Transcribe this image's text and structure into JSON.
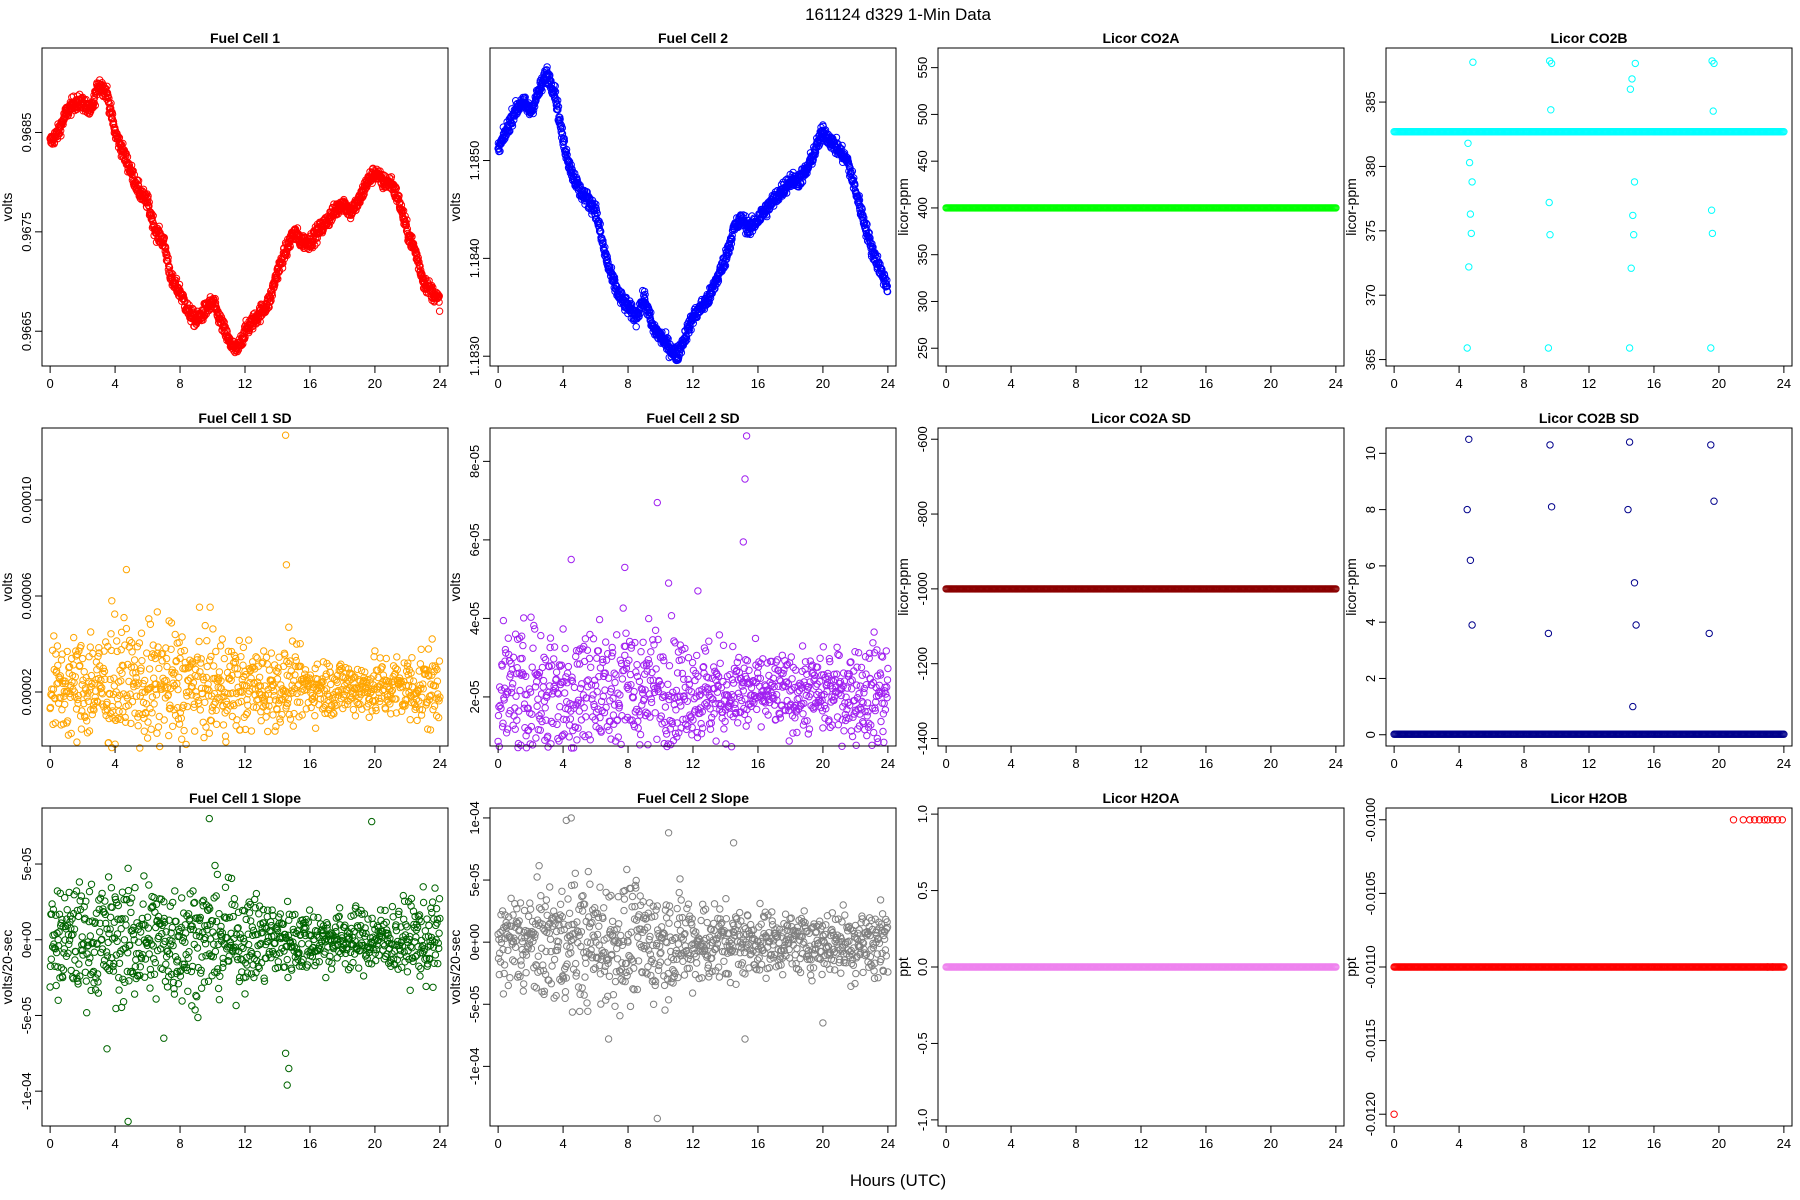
{
  "figure": {
    "title": "161124   d329   1-Min Data",
    "xlabel": "Hours (UTC)"
  },
  "chart_data": [
    {
      "type": "scatter",
      "title": "Fuel Cell 1",
      "ylabel": "volts",
      "color": "#ff0000",
      "xlim": [
        -0.5,
        24.5
      ],
      "ylim": [
        0.96615,
        0.96935
      ],
      "xticks": [
        0,
        4,
        8,
        12,
        16,
        20,
        24
      ],
      "yticks": [
        0.9665,
        0.9675,
        0.9685
      ],
      "ytick_labels": [
        "0.9665",
        "0.9675",
        "0.9685"
      ],
      "x": [
        0,
        0.5,
        1,
        1.5,
        2,
        2.5,
        3,
        3.5,
        4,
        4.5,
        5,
        5.5,
        6,
        6.5,
        7,
        7.5,
        8,
        8.5,
        9,
        9.5,
        10,
        10.5,
        11,
        11.5,
        12,
        12.5,
        13,
        13.5,
        14,
        14.5,
        15,
        15.5,
        16,
        16.5,
        17,
        17.5,
        18,
        18.5,
        19,
        19.5,
        20,
        20.5,
        21,
        21.5,
        22,
        22.5,
        23,
        23.5,
        24
      ],
      "y": [
        0.9684,
        0.9685,
        0.9687,
        0.9688,
        0.9688,
        0.9687,
        0.969,
        0.9689,
        0.9685,
        0.9683,
        0.9681,
        0.9679,
        0.9678,
        0.9675,
        0.9674,
        0.967,
        0.9669,
        0.9667,
        0.9666,
        0.9667,
        0.9668,
        0.9666,
        0.9664,
        0.9663,
        0.9665,
        0.9666,
        0.9667,
        0.9668,
        0.9671,
        0.9673,
        0.9675,
        0.9674,
        0.9674,
        0.9675,
        0.9676,
        0.9677,
        0.9678,
        0.9677,
        0.9678,
        0.968,
        0.9681,
        0.968,
        0.968,
        0.9678,
        0.9675,
        0.9673,
        0.967,
        0.9669,
        0.9668
      ]
    },
    {
      "type": "scatter",
      "title": "Fuel Cell 2",
      "ylabel": "volts",
      "color": "#0000ff",
      "xlim": [
        -0.5,
        24.5
      ],
      "ylim": [
        1.1829,
        1.18615
      ],
      "xticks": [
        0,
        4,
        8,
        12,
        16,
        20,
        24
      ],
      "yticks": [
        1.183,
        1.184,
        1.185
      ],
      "ytick_labels": [
        "1.1830",
        "1.1840",
        "1.1850"
      ],
      "x": [
        0,
        0.5,
        1,
        1.5,
        2,
        2.5,
        3,
        3.5,
        4,
        4.5,
        5,
        5.5,
        6,
        6.5,
        7,
        7.5,
        8,
        8.5,
        9,
        9.5,
        10,
        10.5,
        11,
        11.5,
        12,
        12.5,
        13,
        13.5,
        14,
        14.5,
        15,
        15.5,
        16,
        16.5,
        17,
        17.5,
        18,
        18.5,
        19,
        19.5,
        20,
        20.5,
        21,
        21.5,
        22,
        22.5,
        23,
        23.5,
        24
      ],
      "y": [
        1.1851,
        1.1853,
        1.1855,
        1.1856,
        1.1855,
        1.1857,
        1.1859,
        1.1857,
        1.1852,
        1.1849,
        1.1847,
        1.1846,
        1.1845,
        1.1841,
        1.1838,
        1.1836,
        1.1835,
        1.1834,
        1.1836,
        1.1833,
        1.1832,
        1.1831,
        1.183,
        1.1832,
        1.1834,
        1.1835,
        1.1836,
        1.1838,
        1.184,
        1.1843,
        1.1844,
        1.1843,
        1.1844,
        1.1845,
        1.1846,
        1.1847,
        1.1848,
        1.1848,
        1.1849,
        1.1851,
        1.1853,
        1.1852,
        1.1851,
        1.185,
        1.1847,
        1.1844,
        1.1841,
        1.1839,
        1.1837
      ]
    },
    {
      "type": "scatter",
      "title": "Licor CO2A",
      "ylabel": "licor-ppm",
      "color": "#00ff00",
      "xlim": [
        -0.5,
        24.5
      ],
      "ylim": [
        231,
        571
      ],
      "xticks": [
        0,
        4,
        8,
        12,
        16,
        20,
        24
      ],
      "yticks": [
        250,
        300,
        350,
        400,
        450,
        500,
        550
      ],
      "ytick_labels": [
        "250",
        "300",
        "350",
        "400",
        "450",
        "500",
        "550"
      ],
      "line_y": 400
    },
    {
      "type": "scatter",
      "title": "Licor CO2B",
      "ylabel": "licor-ppm",
      "color": "#00ffff",
      "xlim": [
        -0.5,
        24.5
      ],
      "ylim": [
        364.5,
        389.2
      ],
      "xticks": [
        0,
        4,
        8,
        12,
        16,
        20,
        24
      ],
      "yticks": [
        365,
        370,
        375,
        380,
        385
      ],
      "ytick_labels": [
        "365",
        "370",
        "375",
        "380",
        "385"
      ],
      "line_y": 382.7,
      "x": [
        4.5,
        4.6,
        4.7,
        4.75,
        4.8,
        4.85,
        9.5,
        9.55,
        9.6,
        9.65,
        9.7,
        14.5,
        14.6,
        14.7,
        14.75,
        14.8,
        14.85,
        19.5,
        19.55,
        19.6,
        19.65,
        19.7,
        4.55,
        4.65,
        14.55,
        14.65,
        9.58,
        19.58
      ],
      "y": [
        365.9,
        372.2,
        376.3,
        374.8,
        378.8,
        388.1,
        365.9,
        377.2,
        374.7,
        384.4,
        388.0,
        365.9,
        372.1,
        376.2,
        374.7,
        378.8,
        388.0,
        365.9,
        376.6,
        374.8,
        384.3,
        388.0,
        381.8,
        380.3,
        386.0,
        386.8,
        388.2,
        388.2
      ]
    },
    {
      "type": "scatter",
      "title": "Fuel Cell 1 SD",
      "ylabel": "volts",
      "color": "#ffa500",
      "xlim": [
        -0.5,
        24.5
      ],
      "ylim": [
        -2.5e-06,
        0.00013
      ],
      "xticks": [
        0,
        4,
        8,
        12,
        16,
        20,
        24
      ],
      "yticks": [
        2e-05,
        6e-05,
        0.0001
      ],
      "ytick_labels": [
        "0.00002",
        "0.00006",
        "0.00010"
      ],
      "baseline": 2.2e-05,
      "spread": 1.1e-05,
      "x": [
        14.5,
        14.55,
        4.7,
        3.8,
        14.7,
        2.5
      ],
      "y": [
        0.000127,
        7.3e-05,
        7.1e-05,
        5.8e-05,
        4.7e-05,
        4.5e-05
      ]
    },
    {
      "type": "scatter",
      "title": "Fuel Cell 2 SD",
      "ylabel": "volts",
      "color": "#a020f0",
      "xlim": [
        -0.5,
        24.5
      ],
      "ylim": [
        7.5e-06,
        8.85e-05
      ],
      "xticks": [
        0,
        4,
        8,
        12,
        16,
        20,
        24
      ],
      "yticks": [
        2e-05,
        4e-05,
        6e-05,
        8e-05
      ],
      "ytick_labels": [
        "2e-05",
        "4e-05",
        "6e-05",
        "8e-05"
      ],
      "baseline": 2.1e-05,
      "spread": 8.5e-06,
      "x": [
        15.3,
        15.2,
        9.8,
        15.1,
        4.5,
        7.8,
        10.5,
        12.3
      ],
      "y": [
        8.65e-05,
        7.55e-05,
        6.95e-05,
        5.95e-05,
        5.5e-05,
        5.3e-05,
        4.9e-05,
        4.7e-05
      ]
    },
    {
      "type": "scatter",
      "title": "Licor CO2A SD",
      "ylabel": "licor-ppm",
      "color": "#8b0000",
      "xlim": [
        -0.5,
        24.5
      ],
      "ylim": [
        -1420,
        -570
      ],
      "xticks": [
        0,
        4,
        8,
        12,
        16,
        20,
        24
      ],
      "yticks": [
        -1400,
        -1200,
        -1000,
        -800,
        -600
      ],
      "ytick_labels": [
        "-1400",
        "-1200",
        "-1000",
        "-800",
        "-600"
      ],
      "line_y": -1000
    },
    {
      "type": "scatter",
      "title": "Licor CO2B SD",
      "ylabel": "licor-ppm",
      "color": "#00008b",
      "xlim": [
        -0.5,
        24.5
      ],
      "ylim": [
        -0.4,
        10.9
      ],
      "xticks": [
        0,
        4,
        8,
        12,
        16,
        20,
        24
      ],
      "yticks": [
        0,
        2,
        4,
        6,
        8,
        10
      ],
      "ytick_labels": [
        "0",
        "2",
        "4",
        "6",
        "8",
        "10"
      ],
      "line_y": 0.02,
      "x": [
        4.6,
        4.5,
        4.7,
        4.8,
        9.6,
        9.7,
        9.5,
        14.5,
        14.4,
        14.8,
        14.9,
        14.7,
        19.5,
        19.7,
        19.4
      ],
      "y": [
        10.5,
        8.0,
        6.2,
        3.9,
        10.3,
        8.1,
        3.6,
        10.4,
        8.0,
        5.4,
        3.9,
        1.0,
        10.3,
        8.3,
        3.6
      ]
    },
    {
      "type": "scatter",
      "title": "Fuel Cell 1 Slope",
      "ylabel": "volts/20-sec",
      "color": "#006400",
      "xlim": [
        -0.5,
        24.5
      ],
      "ylim": [
        -0.000123,
        8.7e-05
      ],
      "xticks": [
        0,
        4,
        8,
        12,
        16,
        20,
        24
      ],
      "yticks": [
        -0.0001,
        -5e-05,
        0,
        5e-05
      ],
      "ytick_labels": [
        "-1e-04",
        "-5e-05",
        "0e+00",
        "5e-05"
      ],
      "baseline": 0.0,
      "spread": 1.8e-05,
      "x": [
        4.8,
        14.6,
        14.7,
        14.5,
        9.8,
        19.8,
        3.5,
        7.0,
        0.5
      ],
      "y": [
        -0.00012,
        -9.6e-05,
        -8.5e-05,
        -7.5e-05,
        8e-05,
        7.8e-05,
        -7.2e-05,
        -6.5e-05,
        -4e-05
      ]
    },
    {
      "type": "scatter",
      "title": "Fuel Cell 2 Slope",
      "ylabel": "volts/20-sec",
      "color": "#808080",
      "xlim": [
        -0.5,
        24.5
      ],
      "ylim": [
        -0.000148,
        0.000108
      ],
      "xticks": [
        0,
        4,
        8,
        12,
        16,
        20,
        24
      ],
      "yticks": [
        -0.0001,
        -5e-05,
        0,
        5e-05,
        0.0001
      ],
      "ytick_labels": [
        "-1e-04",
        "-5e-05",
        "0e+00",
        "5e-05",
        "1e-04"
      ],
      "baseline": 0.0,
      "spread": 2.2e-05,
      "x": [
        9.8,
        4.5,
        4.2,
        15.2,
        10.5,
        6.8,
        14.5,
        20
      ],
      "y": [
        -0.000142,
        0.0001,
        9.8e-05,
        -7.8e-05,
        8.8e-05,
        -7.8e-05,
        8e-05,
        -6.5e-05
      ]
    },
    {
      "type": "scatter",
      "title": "Licor H2OA",
      "ylabel": "ppt",
      "color": "#ee82ee",
      "xlim": [
        -0.5,
        24.5
      ],
      "ylim": [
        -1.04,
        1.04
      ],
      "xticks": [
        0,
        4,
        8,
        12,
        16,
        20,
        24
      ],
      "yticks": [
        -1.0,
        -0.5,
        0,
        0.5,
        1.0
      ],
      "ytick_labels": [
        "-1.0",
        "-0.5",
        "0.0",
        "0.5",
        "1.0"
      ],
      "line_y": 0
    },
    {
      "type": "scatter",
      "title": "Licor H2OB",
      "ylabel": "ppt",
      "color": "#ff0000",
      "xlim": [
        -0.5,
        24.5
      ],
      "ylim": [
        -0.01208,
        -0.00992
      ],
      "xticks": [
        0,
        4,
        8,
        12,
        16,
        20,
        24
      ],
      "yticks": [
        -0.012,
        -0.0115,
        -0.011,
        -0.0105,
        -0.01
      ],
      "ytick_labels": [
        "-0.0120",
        "-0.0115",
        "-0.0110",
        "-0.0105",
        "-0.0100"
      ],
      "line_y": -0.011,
      "x": [
        0,
        20.9,
        21.5,
        21.9,
        22.2,
        22.5,
        22.8,
        23.0,
        23.3,
        23.6,
        23.9,
        23.0,
        23.3
      ],
      "y": [
        -0.012,
        -0.01,
        -0.01,
        -0.01,
        -0.01,
        -0.01,
        -0.01,
        -0.01,
        -0.01,
        -0.01,
        -0.01,
        -0.011,
        -0.011
      ]
    }
  ]
}
